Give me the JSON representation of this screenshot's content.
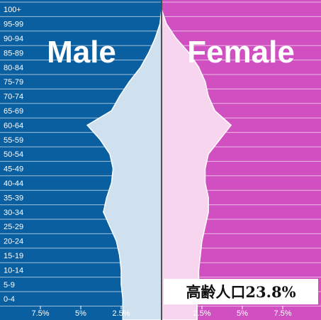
{
  "chart_data": {
    "type": "population-pyramid",
    "age_groups": [
      "100+",
      "95-99",
      "90-94",
      "85-89",
      "80-84",
      "75-79",
      "70-74",
      "65-69",
      "60-64",
      "55-59",
      "50-54",
      "45-49",
      "40-44",
      "35-39",
      "30-34",
      "25-29",
      "20-24",
      "15-19",
      "10-14",
      "5-9",
      "0-4"
    ],
    "series": [
      {
        "name": "Male",
        "values": [
          0.0,
          0.1,
          0.4,
          0.8,
          1.3,
          2.0,
          2.6,
          3.1,
          4.6,
          3.8,
          3.2,
          3.0,
          3.1,
          3.4,
          3.6,
          3.2,
          2.8,
          2.6,
          2.5,
          2.5,
          2.4
        ]
      },
      {
        "name": "Female",
        "values": [
          0.0,
          0.3,
          0.9,
          1.7,
          2.3,
          2.7,
          2.9,
          3.3,
          4.3,
          3.6,
          2.9,
          2.7,
          2.7,
          2.9,
          2.9,
          2.7,
          2.5,
          2.4,
          2.3,
          2.3,
          2.2
        ]
      }
    ],
    "x_ticks": [
      {
        "label": "7.5%",
        "value": -7.5
      },
      {
        "label": "5%",
        "value": -5
      },
      {
        "label": "2.5%",
        "value": -2.5
      },
      {
        "label": "2.5%",
        "value": 2.5
      },
      {
        "label": "5%",
        "value": 5
      },
      {
        "label": "7.5%",
        "value": 7.5
      }
    ],
    "xlim": [
      -10,
      10
    ],
    "annotation": "高齢人口23.8%",
    "colors": {
      "male_background": "#0a5fa0",
      "female_background": "#d150c1",
      "male_fill": "#cfe1ee",
      "female_fill": "#f8d5ef",
      "grid": "#ffffff"
    }
  }
}
